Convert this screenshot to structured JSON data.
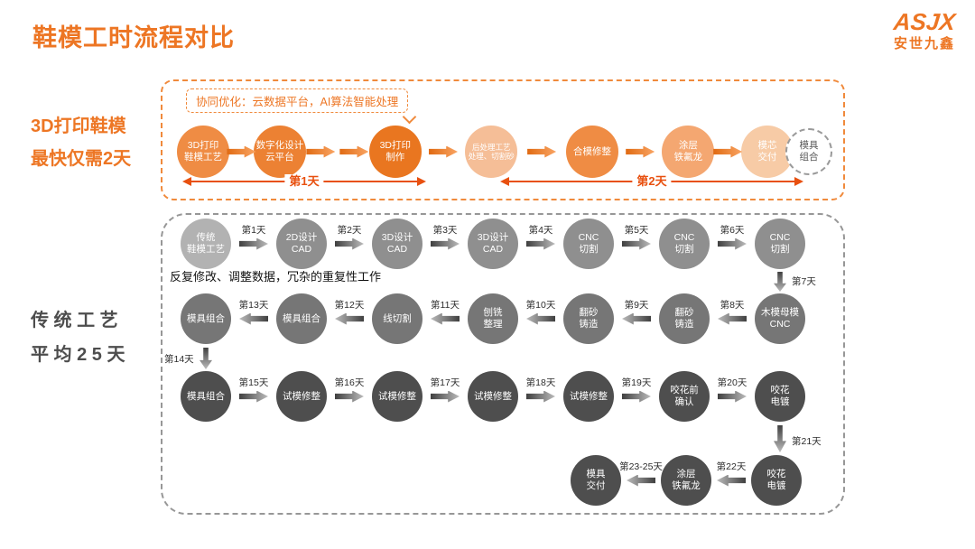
{
  "page": {
    "title": "鞋模工时流程对比"
  },
  "logo": {
    "brand": "ASJX",
    "company": "安世九鑫"
  },
  "colors": {
    "accent_orange": "#ED7624",
    "timeline_red": "#E8500F",
    "gray_dark": "#4D4D4D"
  },
  "print_section": {
    "side_label": [
      "3D打印鞋模",
      "最快仅需2天"
    ],
    "annotation": "协同优化：云数据平台，AI算法智能处理",
    "timeline": [
      "第1天",
      "第2天"
    ],
    "steps": [
      {
        "lines": [
          "3D打印",
          "鞋模工艺"
        ],
        "color": "#EF8C44"
      },
      {
        "lines": [
          "数字化设计",
          "云平台"
        ],
        "color": "#EC8133"
      },
      {
        "lines": [
          "3D打印",
          "制作"
        ],
        "color": "#E97620"
      },
      {
        "lines": [
          "后处理工艺",
          "处理、切割砂"
        ],
        "color": "#F5BE97"
      },
      {
        "lines": [
          "合模修整"
        ],
        "color": "#EF8C44"
      },
      {
        "lines": [
          "涂层",
          "铁氟龙"
        ],
        "color": "#F4A771"
      },
      {
        "lines": [
          "模芯",
          "交付"
        ],
        "color": "#F7CBA6"
      },
      {
        "lines": [
          "模具",
          "组合"
        ],
        "dashed": true
      }
    ]
  },
  "traditional_section": {
    "side_label": [
      "传 统 工 艺",
      "平 均 2 5 天"
    ],
    "note": "反复修改、调整数据，冗杂的重复性工作",
    "vertical_labels": [
      "第7天",
      "第14天",
      "第21天"
    ],
    "rows": [
      {
        "direction": "right",
        "color": "#8F8F8F",
        "steps": [
          {
            "lines": [
              "传统",
              "鞋模工艺"
            ],
            "color": "#B2B2B2"
          },
          {
            "lines": [
              "2D设计",
              "CAD"
            ]
          },
          {
            "lines": [
              "3D设计",
              "CAD"
            ]
          },
          {
            "lines": [
              "3D设计",
              "CAD"
            ]
          },
          {
            "lines": [
              "CNC",
              "切割"
            ]
          },
          {
            "lines": [
              "CNC",
              "切割"
            ]
          },
          {
            "lines": [
              "CNC",
              "切割"
            ]
          }
        ],
        "day_labels": [
          "第1天",
          "第2天",
          "第3天",
          "第4天",
          "第5天",
          "第6天"
        ]
      },
      {
        "direction": "left",
        "color": "#767676",
        "steps": [
          {
            "lines": [
              "模具组合"
            ]
          },
          {
            "lines": [
              "模具组合"
            ]
          },
          {
            "lines": [
              "线切割"
            ]
          },
          {
            "lines": [
              "刨铣",
              "整理"
            ]
          },
          {
            "lines": [
              "翻砂",
              "铸造"
            ]
          },
          {
            "lines": [
              "翻砂",
              "铸造"
            ]
          },
          {
            "lines": [
              "木模母模",
              "CNC"
            ]
          }
        ],
        "day_labels": [
          "第13天",
          "第12天",
          "第11天",
          "第10天",
          "第9天",
          "第8天"
        ]
      },
      {
        "direction": "right",
        "color": "#4E4E4E",
        "steps": [
          {
            "lines": [
              "模具组合"
            ]
          },
          {
            "lines": [
              "试模修整"
            ]
          },
          {
            "lines": [
              "试模修整"
            ]
          },
          {
            "lines": [
              "试模修整"
            ]
          },
          {
            "lines": [
              "试模修整"
            ]
          },
          {
            "lines": [
              "咬花前",
              "确认"
            ]
          },
          {
            "lines": [
              "咬花",
              "电镀"
            ]
          }
        ],
        "day_labels": [
          "第15天",
          "第16天",
          "第17天",
          "第18天",
          "第19天",
          "第20天"
        ]
      },
      {
        "direction": "left",
        "color": "#4E4E4E",
        "steps": [
          {
            "lines": [
              "模具",
              "交付"
            ]
          },
          {
            "lines": [
              "涂层",
              "铁氟龙"
            ]
          },
          {
            "lines": [
              "咬花",
              "电镀"
            ]
          }
        ],
        "day_labels": [
          "第23-25天",
          "第22天"
        ]
      }
    ]
  }
}
